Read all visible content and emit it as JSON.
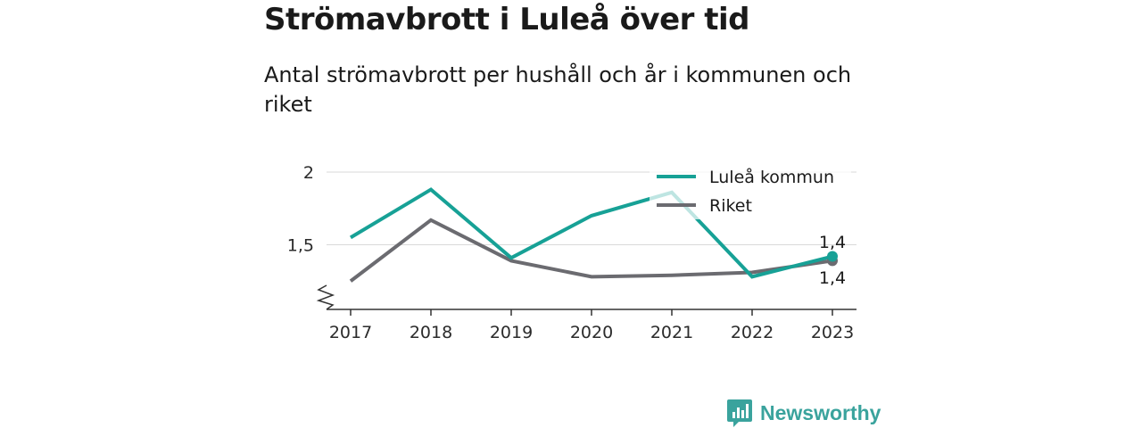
{
  "title": "Strömavbrott i Luleå över tid",
  "subtitle": "Antal strömavbrott per hushåll och år i kommunen och riket",
  "brand": "Newsworthy",
  "chart_data": {
    "type": "line",
    "x": [
      "2017",
      "2018",
      "2019",
      "2020",
      "2021",
      "2022",
      "2023"
    ],
    "series": [
      {
        "name": "Luleå kommun",
        "color": "#17a196",
        "values": [
          1.55,
          1.88,
          1.41,
          1.7,
          1.86,
          1.28,
          1.42
        ]
      },
      {
        "name": "Riket",
        "color": "#6b6b70",
        "values": [
          1.25,
          1.67,
          1.39,
          1.28,
          1.29,
          1.31,
          1.39
        ]
      }
    ],
    "y_ticks": [
      {
        "value": 2,
        "label": "2"
      },
      {
        "value": 1.5,
        "label": "1,5"
      }
    ],
    "end_labels": [
      "1,4",
      "1,4"
    ],
    "ylim": [
      1.05,
      2.0
    ],
    "axis_break": true,
    "grid": true,
    "legend_position": "top-right"
  }
}
